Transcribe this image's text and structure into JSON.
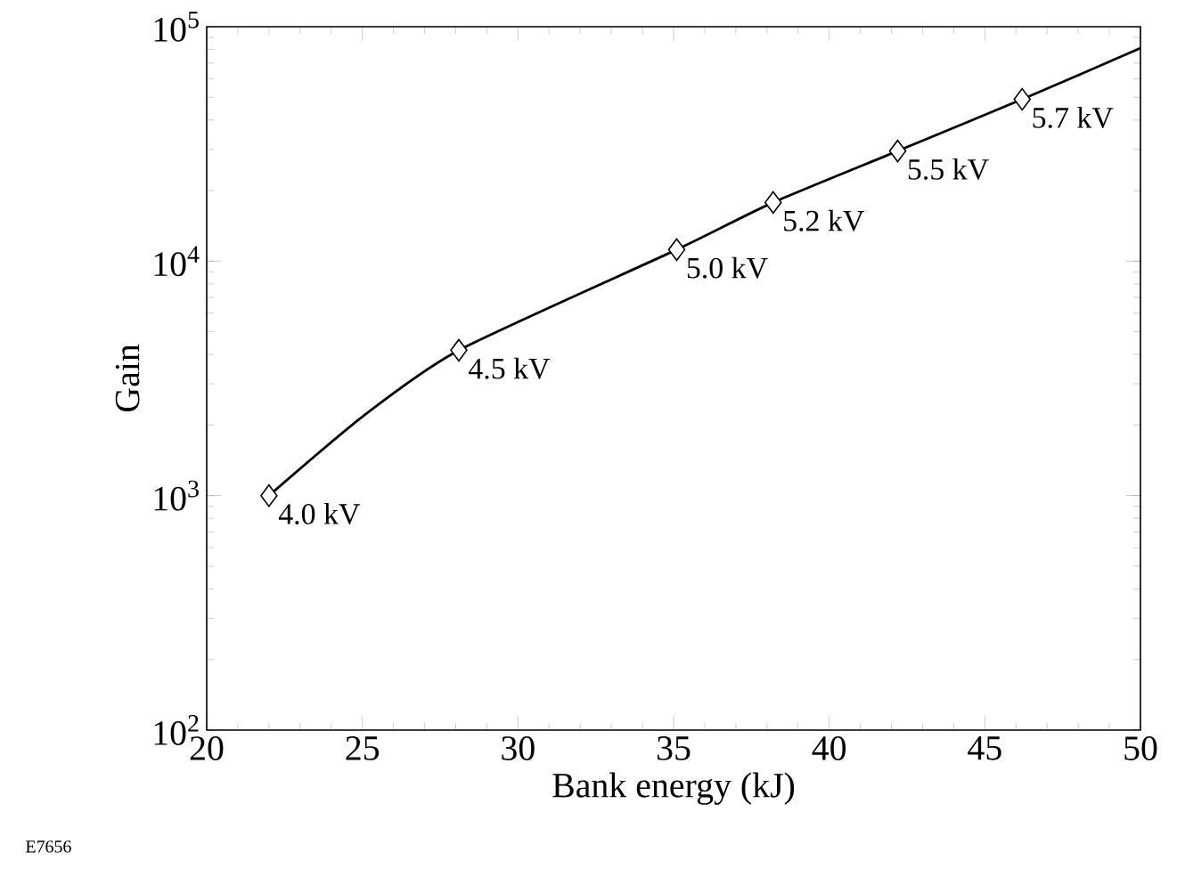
{
  "chart_data": {
    "type": "line",
    "xlabel": "Bank energy (kJ)",
    "ylabel": "Gain",
    "log": "y",
    "xlim": [
      20,
      50
    ],
    "ylim": [
      100,
      100000
    ],
    "xticks": [
      20,
      25,
      30,
      35,
      40,
      45,
      50
    ],
    "yticks": [
      {
        "value": 100,
        "label": "10$^{2}$"
      },
      {
        "value": 1000,
        "label": "10$^{3}$"
      },
      {
        "value": 10000,
        "label": "10$^{4}$"
      },
      {
        "value": 100000,
        "label": "10$^{5}$"
      }
    ],
    "grid": false,
    "series": [
      {
        "color": "#000000",
        "marker": "none",
        "line_style": "solid",
        "x": [
          22,
          25,
          28.1,
          35.1,
          38.2,
          42.2,
          46.2,
          50
        ],
        "values": [
          1000,
          2170,
          4170,
          11200,
          17800,
          29500,
          49000,
          81000
        ]
      },
      {
        "type": "scatter",
        "color": "#000000",
        "marker": "diamond",
        "x": [
          22,
          28.1,
          35.1,
          38.2,
          42.2,
          46.2
        ],
        "values": [
          1000,
          4170,
          11200,
          17800,
          29500,
          49000
        ]
      }
    ],
    "annotations": [
      {
        "text": "4.0 kV",
        "x": 22,
        "y": 1000
      },
      {
        "text": "4.5 kV",
        "x": 28.1,
        "y": 4170
      },
      {
        "text": "5.0 kV",
        "x": 35.1,
        "y": 11200
      },
      {
        "text": "5.2 kV",
        "x": 38.2,
        "y": 17800
      },
      {
        "text": "5.5 kV",
        "x": 42.2,
        "y": 29500
      },
      {
        "text": "5.7 kV",
        "x": 46.2,
        "y": 49000
      },
      "E7656"
    ]
  }
}
